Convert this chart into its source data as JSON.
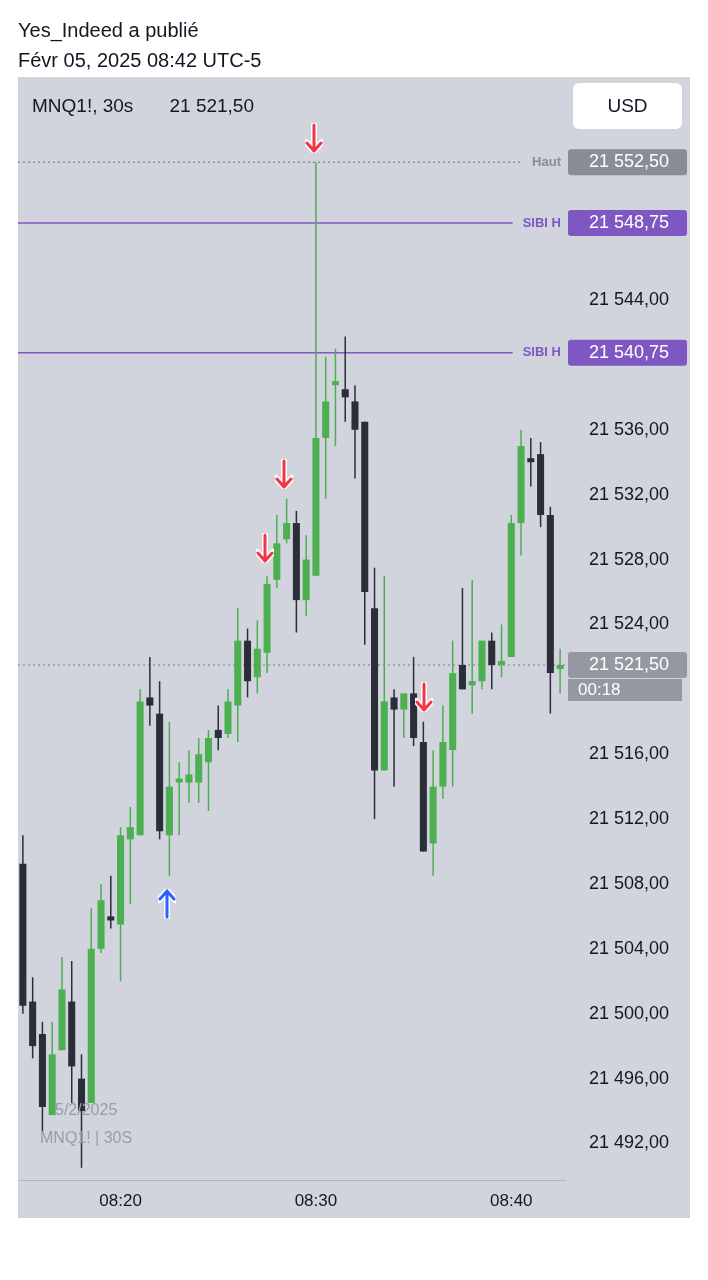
{
  "chart_data": {
    "type": "candlestick",
    "title": "MNQ1!, 30s",
    "subtitle": "Févr 05, 2025 08:42 UTC-5",
    "annotations": [
      "Yes_Indeed a publié",
      "21 521,50",
      "USD",
      "5/2/2025",
      "MNQ1! | 30S",
      "00:18"
    ],
    "categories": [
      null,
      null,
      null,
      null,
      null,
      null,
      null,
      null,
      null,
      null,
      "08:20",
      null,
      null,
      null,
      null,
      null,
      null,
      null,
      null,
      null,
      null,
      null,
      null,
      null,
      null,
      null,
      null,
      null,
      null,
      null,
      "08:30",
      null,
      null,
      null,
      null,
      null,
      null,
      null,
      null,
      null,
      null,
      null,
      null,
      null,
      null,
      null,
      null,
      null,
      null,
      null,
      "08:40",
      null,
      null,
      null,
      null,
      null
    ],
    "ohlc": [
      [
        21509.25,
        21511,
        21500,
        21500.5
      ],
      [
        21500.75,
        21502.25,
        21497.25,
        21498
      ],
      [
        21498.75,
        21499.5,
        21492.75,
        21494.25
      ],
      [
        21493.75,
        21499.5,
        21493.75,
        21497.5
      ],
      [
        21497.75,
        21503.5,
        21497.75,
        21501.5
      ],
      [
        21500.75,
        21503.25,
        21494.5,
        21496.75
      ],
      [
        21496,
        21497.5,
        21490.5,
        21494
      ],
      [
        21494.5,
        21506.5,
        21494.5,
        21504
      ],
      [
        21504,
        21508,
        21503.75,
        21507
      ],
      [
        21506,
        21508.5,
        21505.25,
        21505.75
      ],
      [
        21505.5,
        21511.5,
        21502,
        21511
      ],
      [
        21510.75,
        21512.75,
        21506.75,
        21511.5
      ],
      [
        21511,
        21520,
        21511,
        21519.25
      ],
      [
        21519.5,
        21522,
        21517.75,
        21519
      ],
      [
        21518.5,
        21520.5,
        21510.75,
        21511.25
      ],
      [
        21511,
        21518,
        21508.5,
        21514
      ],
      [
        21514.25,
        21515.5,
        21511,
        21514.5
      ],
      [
        21514.25,
        21516.25,
        21513,
        21514.75
      ],
      [
        21514.25,
        21517,
        21513,
        21516
      ],
      [
        21515.5,
        21517.5,
        21512.5,
        21517
      ],
      [
        21517.5,
        21519,
        21516.25,
        21517
      ],
      [
        21517.25,
        21520,
        21517,
        21519.25
      ],
      [
        21519,
        21525,
        21516.75,
        21523
      ],
      [
        21523,
        21523.75,
        21519.5,
        21520.5
      ],
      [
        21520.75,
        21524.25,
        21519.75,
        21522.5
      ],
      [
        21522.25,
        21527,
        21521,
        21526.5
      ],
      [
        21526.75,
        21530.75,
        21526.25,
        21529
      ],
      [
        21529.25,
        21531.75,
        21529,
        21530.25
      ],
      [
        21530.25,
        21531,
        21523.5,
        21525.5
      ],
      [
        21525.5,
        21529.5,
        21524.5,
        21528
      ],
      [
        21527,
        21552.5,
        21527,
        21535.5
      ],
      [
        21535.5,
        21540.5,
        21531.75,
        21537.75
      ],
      [
        21538.75,
        21541,
        21535,
        21539
      ],
      [
        21538.5,
        21541.75,
        21536.5,
        21538
      ],
      [
        21537.75,
        21538.75,
        21533,
        21536
      ],
      [
        21536.5,
        21536.5,
        21522.75,
        21526
      ],
      [
        21525,
        21527.5,
        21512,
        21515
      ],
      [
        21515,
        21527,
        21515,
        21519.25
      ],
      [
        21519.5,
        21520,
        21514,
        21518.75
      ],
      [
        21518.75,
        21519.75,
        21517,
        21519.75
      ],
      [
        21519.75,
        21522,
        21516.5,
        21517
      ],
      [
        21516.75,
        21518,
        21510,
        21510
      ],
      [
        21510.5,
        21516.25,
        21508.5,
        21514
      ],
      [
        21514,
        21519,
        21513.25,
        21516.75
      ],
      [
        21516.25,
        21523,
        21514,
        21521
      ],
      [
        21521.5,
        21526.25,
        21520,
        21520
      ],
      [
        21520.25,
        21526.75,
        21518.5,
        21520.5
      ],
      [
        21520.5,
        21523,
        21520,
        21523
      ],
      [
        21523,
        21523.5,
        21520,
        21521.5
      ],
      [
        21521.5,
        21524,
        21520.75,
        21521.75
      ],
      [
        21522,
        21530.75,
        21522,
        21530.25
      ],
      [
        21530.25,
        21536,
        21528.25,
        21535
      ],
      [
        21534.25,
        21535.5,
        21532.5,
        21534
      ],
      [
        21534.5,
        21535.25,
        21530,
        21530.75
      ],
      [
        21530.75,
        21531.25,
        21518.5,
        21521
      ],
      [
        21521.25,
        21522.5,
        21519.75,
        21521.5
      ]
    ],
    "colors": [
      "#2a2e39",
      "#2a2e39",
      "#2a2e39",
      "#4caf50",
      "#4caf50",
      "#2a2e39",
      "#2a2e39",
      "#4caf50",
      "#4caf50",
      "#2a2e39",
      "#4caf50",
      "#4caf50",
      "#4caf50",
      "#2a2e39",
      "#2a2e39",
      "#4caf50",
      "#4caf50",
      "#4caf50",
      "#4caf50",
      "#4caf50",
      "#2a2e39",
      "#4caf50",
      "#4caf50",
      "#2a2e39",
      "#4caf50",
      "#4caf50",
      "#4caf50",
      "#4caf50",
      "#2a2e39",
      "#4caf50",
      "#4caf50",
      "#4caf50",
      "#4caf50",
      "#2a2e39",
      "#2a2e39",
      "#2a2e39",
      "#2a2e39",
      "#4caf50",
      "#2a2e39",
      "#4caf50",
      "#2a2e39",
      "#2a2e39",
      "#4caf50",
      "#4caf50",
      "#4caf50",
      "#2a2e39",
      "#4caf50",
      "#4caf50",
      "#2a2e39",
      "#4caf50",
      "#4caf50",
      "#4caf50",
      "#2a2e39",
      "#2a2e39",
      "#2a2e39",
      "#4caf50"
    ],
    "ylim": [
      21489.75,
      21557.75
    ],
    "yticks": [
      {
        "value": 21492,
        "label": "21 492,00"
      },
      {
        "value": 21496,
        "label": "21 496,00"
      },
      {
        "value": 21500,
        "label": "21 500,00"
      },
      {
        "value": 21504,
        "label": "21 504,00"
      },
      {
        "value": 21508,
        "label": "21 508,00"
      },
      {
        "value": 21512,
        "label": "21 512,00"
      },
      {
        "value": 21516,
        "label": "21 516,00"
      },
      {
        "value": 21521.5,
        "label": "21 521,50"
      },
      {
        "value": 21524,
        "label": "21 524,00"
      },
      {
        "value": 21528,
        "label": "21 528,00"
      },
      {
        "value": 21532,
        "label": "21 532,00"
      },
      {
        "value": 21536,
        "label": "21 536,00"
      },
      {
        "value": 21540.75,
        "label": "21 540,75"
      },
      {
        "value": 21544,
        "label": "21 544,00"
      },
      {
        "value": 21548.75,
        "label": "21 548,75"
      },
      {
        "value": 21552.5,
        "label": "21 552,50"
      }
    ],
    "ref_lines": [
      {
        "axis": "y",
        "value": 21552.5,
        "label": "Haut",
        "color": "#8a8d96",
        "line_style": "dotted"
      },
      {
        "axis": "y",
        "value": 21548.75,
        "label": "SIBI H",
        "color": "#7e57c2",
        "line_style": "solid"
      },
      {
        "axis": "y",
        "value": 21540.75,
        "label": "SIBI H",
        "color": "#7e57c2",
        "line_style": "solid"
      },
      {
        "axis": "y",
        "value": 21521.5,
        "label": null,
        "color": "#9598a1",
        "line_style": "dotted"
      }
    ]
  }
}
